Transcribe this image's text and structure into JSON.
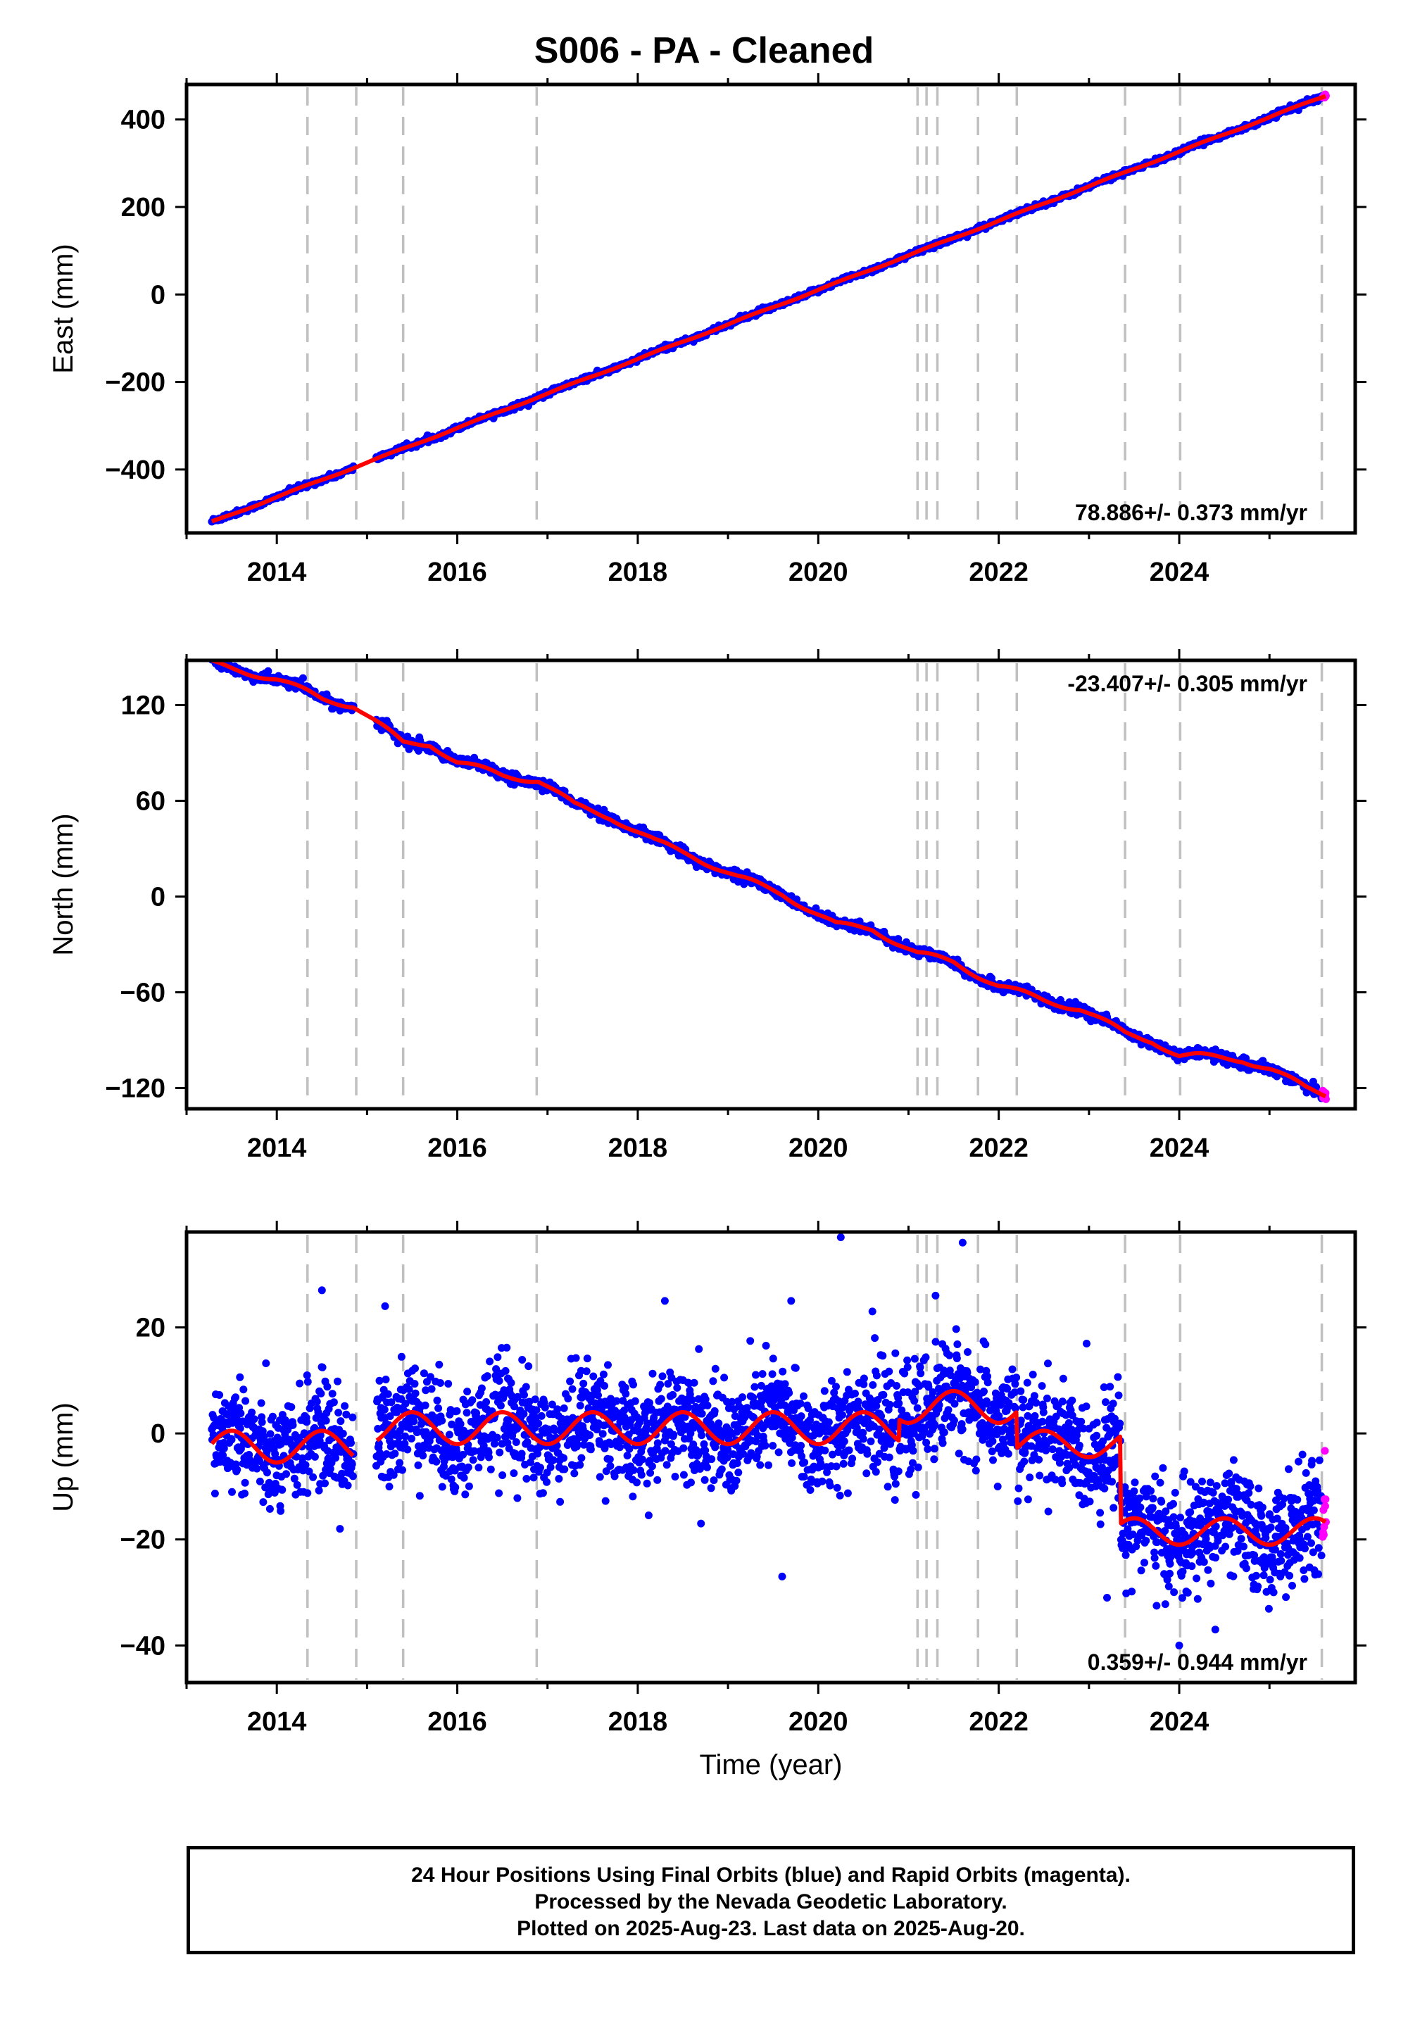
{
  "title": "S006  - PA - Cleaned",
  "xlabel": "Time (year)",
  "footer": {
    "line1": "24 Hour Positions Using Final Orbits (blue) and Rapid Orbits (magenta).",
    "line2": "Processed by the Nevada Geodetic Laboratory.",
    "line3": "Plotted on 2025-Aug-23. Last data on 2025-Aug-20."
  },
  "colors": {
    "final": "#0000ff",
    "rapid": "#ff00ff",
    "model": "#ff0000",
    "steps": "#c0c0c0"
  },
  "chart_data": [
    {
      "type": "scatter",
      "name": "east",
      "ylabel": "East (mm)",
      "rate": "78.886+/- 0.373 mm/yr",
      "rate_position": "bottom-right",
      "xlim": [
        2013.0,
        2025.95
      ],
      "ylim": [
        -545,
        480
      ],
      "yticks": [
        -400,
        -200,
        0,
        200,
        400
      ],
      "ytick_labels": [
        "−400",
        "−200",
        "0",
        "200",
        "400"
      ],
      "xticks": [
        2014,
        2016,
        2018,
        2020,
        2022,
        2024
      ],
      "xtick_labels": [
        "2014",
        "2016",
        "2018",
        "2020",
        "2022",
        "2024"
      ],
      "x_start": 2013.28,
      "x_end": 2025.63,
      "y_start": -520,
      "y_end": 455,
      "wiggles": [
        [
          2014.3,
          2014.9,
          8
        ],
        [
          2016.0,
          2016.9,
          6
        ],
        [
          2019.0,
          2019.6,
          5
        ],
        [
          2021.5,
          2022.0,
          5
        ],
        [
          2023.0,
          2023.6,
          6
        ],
        [
          2024.0,
          2024.4,
          5
        ]
      ],
      "scatter_mm": 3.0,
      "gap": [
        2014.85,
        2015.1
      ],
      "model": {
        "x": [
          2013.28,
          2025.63
        ],
        "y": [
          -520,
          455
        ],
        "amplitude": 1.5
      }
    },
    {
      "type": "scatter",
      "name": "north",
      "ylabel": "North (mm)",
      "rate": "-23.407+/- 0.305 mm/yr",
      "rate_position": "top-right",
      "xlim": [
        2013.0,
        2025.95
      ],
      "ylim": [
        -133,
        148
      ],
      "yticks": [
        -120,
        -60,
        0,
        60,
        120
      ],
      "ytick_labels": [
        "−120",
        "−60",
        "0",
        "60",
        "120"
      ],
      "xticks": [
        2014,
        2016,
        2018,
        2020,
        2022,
        2024
      ],
      "xtick_labels": [
        "2014",
        "2016",
        "2018",
        "2020",
        "2022",
        "2024"
      ],
      "x_start": 2013.28,
      "x_end": 2025.63,
      "y_start": 146,
      "y_end": -124,
      "profile": {
        "x": [
          2013.28,
          2013.6,
          2014.0,
          2014.5,
          2014.85,
          2015.4,
          2015.7,
          2016.0,
          2016.5,
          2016.9,
          2017.3,
          2017.7,
          2018.2,
          2018.6,
          2019.1,
          2019.6,
          2020.2,
          2020.6,
          2021.1,
          2021.5,
          2022.0,
          2022.5,
          2022.9,
          2023.4,
          2023.7,
          2024.0,
          2024.2,
          2024.7,
          2025.0,
          2025.4,
          2025.63
        ],
        "y": [
          146,
          142,
          136,
          124,
          120,
          96,
          96,
          84,
          76,
          73,
          57,
          50,
          34,
          26,
          12,
          2,
          -18,
          -20,
          -36,
          -41,
          -56,
          -65,
          -70,
          -86,
          -90,
          -100,
          -100,
          -102,
          -108,
          -120,
          -124
        ]
      },
      "scatter_mm": 1.6,
      "gap": [
        2014.85,
        2015.1
      ],
      "model": {
        "amplitude": 2.0
      }
    },
    {
      "type": "scatter",
      "name": "up",
      "ylabel": "Up (mm)",
      "rate": "0.359+/- 0.944 mm/yr",
      "rate_position": "bottom-right",
      "xlim": [
        2013.0,
        2025.95
      ],
      "ylim": [
        -47,
        38
      ],
      "yticks": [
        -40,
        -20,
        0,
        20
      ],
      "ytick_labels": [
        "−40",
        "−20",
        "0",
        "20"
      ],
      "xticks": [
        2014,
        2016,
        2018,
        2020,
        2022,
        2024
      ],
      "xtick_labels": [
        "2014",
        "2016",
        "2018",
        "2020",
        "2022",
        "2024"
      ],
      "x_start": 2013.28,
      "x_end": 2025.63,
      "segments": [
        {
          "x": [
            2013.28,
            2014.85
          ],
          "base": -2.5,
          "amp": 3.0
        },
        {
          "x": [
            2015.1,
            2020.9
          ],
          "base": 1.0,
          "amp": 3.0
        },
        {
          "x": [
            2020.9,
            2022.2
          ],
          "base": 5.0,
          "amp": 3.0
        },
        {
          "x": [
            2022.2,
            2023.35
          ],
          "base": -2.0,
          "amp": 2.5
        },
        {
          "x": [
            2023.35,
            2025.63
          ],
          "base": -18.5,
          "amp": 2.5
        }
      ],
      "scatter_mm": 5.0,
      "gap": [
        2014.85,
        2015.1
      ],
      "outliers": [
        [
          2014.5,
          27
        ],
        [
          2015.2,
          24
        ],
        [
          2018.3,
          25
        ],
        [
          2019.7,
          25
        ],
        [
          2020.25,
          37
        ],
        [
          2020.6,
          23
        ],
        [
          2021.3,
          26
        ],
        [
          2021.6,
          36
        ],
        [
          2019.6,
          -27
        ],
        [
          2024.0,
          -40
        ],
        [
          2024.4,
          -37
        ],
        [
          2023.2,
          -31
        ],
        [
          2014.7,
          -18
        ],
        [
          2018.7,
          -17
        ]
      ]
    }
  ],
  "steps": [
    2014.34,
    2014.88,
    2015.4,
    2016.88,
    2021.1,
    2021.2,
    2021.32,
    2021.77,
    2022.2,
    2023.4,
    2024.01,
    2025.58
  ],
  "rapid_points": [
    2025.58,
    2025.63
  ]
}
